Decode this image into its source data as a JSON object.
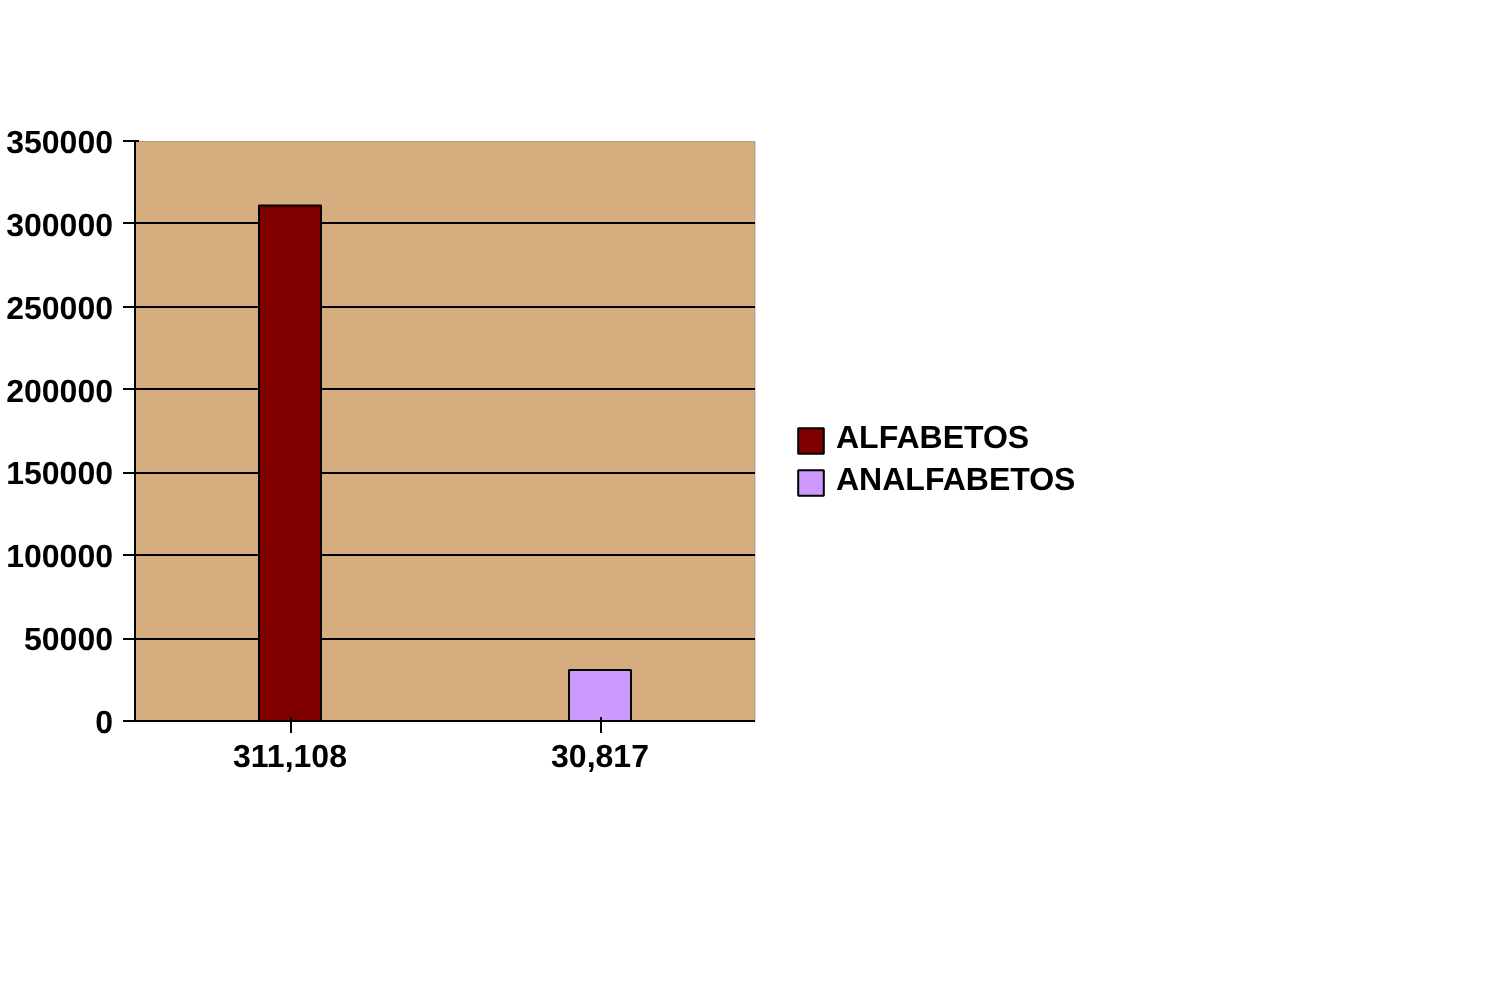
{
  "chart_data": {
    "type": "bar",
    "categories": [
      "311,108",
      "30,817"
    ],
    "series": [
      {
        "name": "ALFABETOS",
        "color": "#800000",
        "values": [
          311108,
          null
        ]
      },
      {
        "name": "ANALFABETOS",
        "color": "#cc99ff",
        "values": [
          null,
          30817
        ]
      }
    ],
    "ylim": [
      0,
      350000
    ],
    "yticks": [
      0,
      50000,
      100000,
      150000,
      200000,
      250000,
      300000,
      350000
    ],
    "grid": "y",
    "legend": "right"
  }
}
